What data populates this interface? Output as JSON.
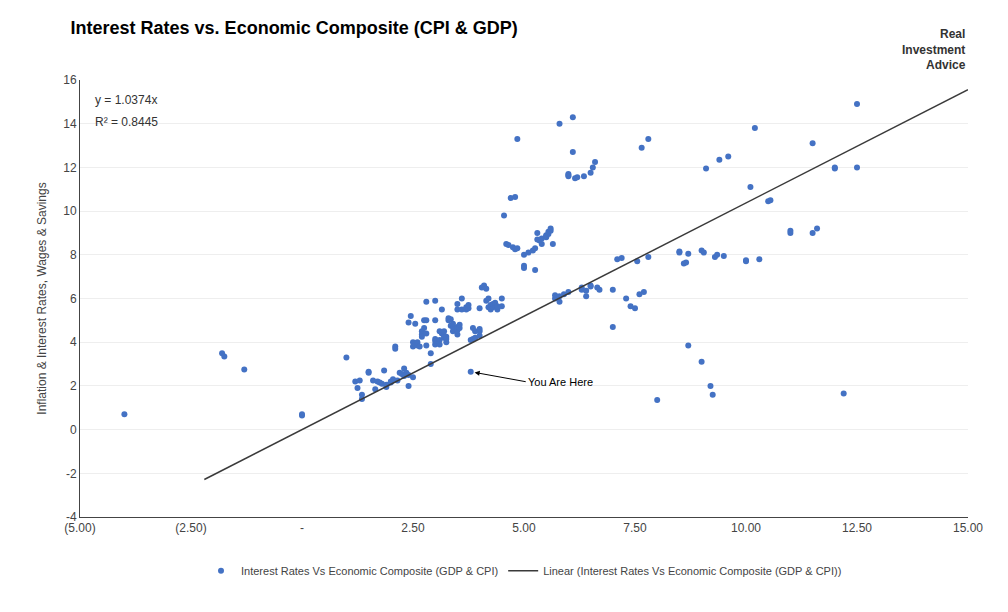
{
  "chart_data": {
    "type": "scatter",
    "title": "Interest Rates vs. Economic Composite (CPI & GDP)",
    "ylabel": "Inflation & Interest Rates, Wages & Savings",
    "xlim": [
      -5.0,
      15.0
    ],
    "ylim": [
      -4,
      16
    ],
    "xticks": [
      {
        "value": -5.0,
        "label": "(5.00)"
      },
      {
        "value": -2.5,
        "label": "(2.50)"
      },
      {
        "value": 0.0,
        "label": "-"
      },
      {
        "value": 2.5,
        "label": "2.50"
      },
      {
        "value": 5.0,
        "label": "5.00"
      },
      {
        "value": 7.5,
        "label": "7.50"
      },
      {
        "value": 10.0,
        "label": "10.00"
      },
      {
        "value": 12.5,
        "label": "12.50"
      },
      {
        "value": 15.0,
        "label": "15.00"
      }
    ],
    "yticks": [
      -4,
      -2,
      0,
      2,
      4,
      6,
      8,
      10,
      12,
      14,
      16
    ],
    "grid": "y",
    "legend": "bottom",
    "annotations": [
      {
        "text": "y = 1.0374x"
      },
      {
        "text": "R² = 0.8445"
      },
      {
        "text": "Real\nInvestment\nAdvice"
      },
      {
        "text": "You Are Here",
        "x": 3.8,
        "y": 2.65
      }
    ],
    "series": [
      {
        "name": "Interest Rates Vs Economic Composite (GDP & CPI)",
        "type": "scatter",
        "marker": "circle",
        "color": "#4472C4",
        "x": [
          -4.0,
          -1.8,
          -1.75,
          -1.3,
          0.0,
          0.0,
          1.0,
          1.2,
          1.25,
          1.3,
          1.35,
          1.35,
          1.5,
          1.5,
          1.6,
          1.65,
          1.7,
          1.75,
          1.8,
          1.85,
          1.9,
          1.9,
          2.0,
          2.0,
          2.05,
          2.1,
          2.1,
          2.15,
          2.2,
          2.25,
          2.3,
          2.3,
          2.35,
          2.4,
          2.4,
          2.4,
          2.45,
          2.5,
          2.5,
          2.5,
          2.55,
          2.55,
          2.6,
          2.6,
          2.65,
          2.7,
          2.7,
          2.7,
          2.75,
          2.75,
          2.8,
          2.8,
          2.8,
          2.8,
          2.9,
          2.9,
          3.0,
          3.0,
          3.0,
          3.0,
          3.0,
          3.1,
          3.1,
          3.1,
          3.15,
          3.15,
          3.2,
          3.2,
          3.2,
          3.25,
          3.25,
          3.25,
          3.3,
          3.3,
          3.35,
          3.35,
          3.4,
          3.4,
          3.4,
          3.5,
          3.5,
          3.5,
          3.5,
          3.5,
          3.55,
          3.55,
          3.6,
          3.6,
          3.7,
          3.7,
          3.75,
          3.75,
          3.8,
          3.8,
          3.85,
          3.85,
          3.9,
          3.9,
          4.0,
          4.0,
          4.0,
          4.0,
          4.05,
          4.1,
          4.15,
          4.15,
          4.2,
          4.2,
          4.25,
          4.25,
          4.3,
          4.3,
          4.35,
          4.35,
          4.4,
          4.4,
          4.5,
          4.5,
          4.55,
          4.6,
          4.65,
          4.7,
          4.75,
          4.8,
          4.8,
          4.85,
          4.85,
          5.0,
          5.0,
          5.0,
          5.1,
          5.2,
          5.25,
          5.25,
          5.3,
          5.3,
          5.35,
          5.4,
          5.4,
          5.5,
          5.5,
          5.5,
          5.55,
          5.55,
          5.6,
          5.6,
          5.65,
          5.7,
          5.7,
          5.8,
          5.8,
          5.8,
          5.9,
          6.0,
          6.0,
          6.0,
          6.0,
          6.1,
          6.1,
          6.15,
          6.2,
          6.3,
          6.3,
          6.35,
          6.4,
          6.4,
          6.5,
          6.5,
          6.5,
          6.55,
          6.6,
          6.65,
          6.7,
          7.0,
          7.0,
          7.1,
          7.2,
          7.3,
          7.4,
          7.5,
          7.55,
          7.6,
          7.65,
          7.7,
          7.8,
          7.8,
          8.0,
          8.5,
          8.5,
          8.6,
          8.65,
          8.7,
          8.7,
          9.0,
          9.0,
          9.05,
          9.1,
          9.2,
          9.25,
          9.3,
          9.35,
          9.4,
          9.5,
          9.6,
          10.0,
          10.0,
          10.1,
          10.2,
          10.3,
          10.5,
          10.55,
          11.0,
          11.0,
          11.5,
          11.6,
          11.5,
          12.0,
          12.0,
          12.5,
          12.5,
          12.2
        ],
        "values": [
          0.7,
          3.5,
          3.35,
          2.75,
          0.65,
          0.7,
          3.3,
          2.2,
          1.9,
          2.25,
          1.6,
          1.4,
          2.65,
          2.6,
          2.25,
          1.85,
          2.2,
          2.15,
          2.1,
          2.7,
          1.95,
          2.05,
          2.15,
          2.2,
          2.3,
          3.8,
          3.7,
          2.25,
          2.6,
          2.55,
          2.45,
          2.8,
          2.6,
          2.0,
          2.5,
          4.9,
          5.2,
          3.8,
          4.0,
          2.4,
          3.9,
          4.85,
          3.85,
          4.0,
          3.8,
          4.5,
          4.35,
          4.25,
          4.65,
          5.0,
          3.85,
          4.4,
          5.0,
          5.85,
          3.0,
          3.5,
          3.9,
          4.05,
          4.15,
          5.0,
          5.9,
          3.9,
          4.1,
          4.5,
          4.4,
          5.5,
          4.2,
          4.3,
          4.5,
          4.0,
          4.15,
          4.25,
          5.0,
          5.1,
          4.75,
          5.05,
          4.5,
          4.7,
          4.85,
          4.35,
          4.55,
          4.7,
          5.5,
          5.75,
          4.65,
          4.8,
          5.5,
          6.0,
          5.5,
          5.6,
          5.55,
          5.7,
          2.65,
          4.1,
          4.15,
          4.65,
          4.2,
          4.5,
          4.3,
          4.5,
          4.6,
          5.55,
          6.5,
          6.6,
          5.9,
          6.45,
          5.6,
          6.0,
          5.5,
          5.7,
          5.6,
          5.75,
          5.65,
          5.8,
          5.5,
          5.65,
          5.65,
          6.0,
          9.8,
          8.5,
          8.45,
          10.6,
          8.35,
          8.25,
          10.65,
          8.3,
          13.3,
          7.5,
          8.0,
          7.4,
          8.1,
          8.2,
          8.3,
          7.3,
          8.7,
          9.0,
          8.65,
          8.5,
          8.75,
          8.8,
          8.85,
          8.9,
          8.95,
          9.05,
          9.1,
          9.2,
          8.5,
          6.0,
          6.15,
          5.85,
          6.1,
          14.0,
          6.2,
          6.3,
          11.6,
          11.65,
          11.7,
          12.7,
          14.3,
          11.5,
          11.55,
          6.4,
          6.5,
          11.6,
          6.1,
          6.35,
          6.6,
          6.55,
          11.75,
          12.0,
          12.25,
          6.5,
          6.4,
          4.7,
          6.4,
          7.8,
          7.85,
          6.0,
          5.65,
          5.55,
          7.7,
          6.2,
          12.9,
          6.3,
          7.9,
          13.3,
          1.35,
          8.1,
          8.15,
          7.6,
          7.65,
          3.85,
          8.05,
          3.1,
          8.2,
          8.1,
          11.95,
          2.0,
          1.6,
          7.9,
          8.0,
          12.35,
          7.95,
          12.5,
          7.7,
          7.75,
          11.1,
          13.8,
          7.8,
          10.45,
          10.5,
          9.0,
          9.1,
          9.0,
          9.2,
          13.1,
          11.95,
          12.0,
          12.0,
          14.9,
          1.65
        ]
      },
      {
        "name": "Linear (Interest Rates Vs Economic Composite (GDP & CPI))",
        "type": "line",
        "line_style": "solid",
        "color": "#3A3A3A",
        "x": [
          -2.2,
          15.0
        ],
        "values": [
          -2.28228,
          15.561
        ]
      }
    ]
  }
}
